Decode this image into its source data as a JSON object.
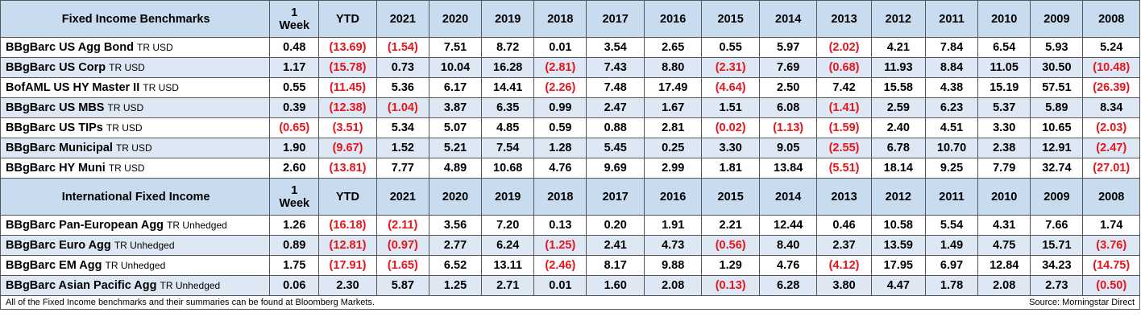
{
  "columns": [
    "1 Week",
    "YTD",
    "2021",
    "2020",
    "2019",
    "2018",
    "2017",
    "2016",
    "2015",
    "2014",
    "2013",
    "2012",
    "2011",
    "2010",
    "2009",
    "2008"
  ],
  "sections": [
    {
      "title": "Fixed Income Benchmarks",
      "rows": [
        {
          "name": "BBgBarc US Agg Bond",
          "sub": "TR USD",
          "values": [
            "0.48",
            "(13.69)",
            "(1.54)",
            "7.51",
            "8.72",
            "0.01",
            "3.54",
            "2.65",
            "0.55",
            "5.97",
            "(2.02)",
            "4.21",
            "7.84",
            "6.54",
            "5.93",
            "5.24"
          ]
        },
        {
          "name": "BBgBarc US Corp",
          "sub": "TR USD",
          "values": [
            "1.17",
            "(15.78)",
            "0.73",
            "10.04",
            "16.28",
            "(2.81)",
            "7.43",
            "8.80",
            "(2.31)",
            "7.69",
            "(0.68)",
            "11.93",
            "8.84",
            "11.05",
            "30.50",
            "(10.48)"
          ]
        },
        {
          "name": "BofAML US HY Master II",
          "sub": "TR USD",
          "values": [
            "0.55",
            "(11.45)",
            "5.36",
            "6.17",
            "14.41",
            "(2.26)",
            "7.48",
            "17.49",
            "(4.64)",
            "2.50",
            "7.42",
            "15.58",
            "4.38",
            "15.19",
            "57.51",
            "(26.39)"
          ]
        },
        {
          "name": "BBgBarc US MBS",
          "sub": "TR USD",
          "values": [
            "0.39",
            "(12.38)",
            "(1.04)",
            "3.87",
            "6.35",
            "0.99",
            "2.47",
            "1.67",
            "1.51",
            "6.08",
            "(1.41)",
            "2.59",
            "6.23",
            "5.37",
            "5.89",
            "8.34"
          ]
        },
        {
          "name": "BBgBarc US TIPs",
          "sub": "TR USD",
          "values": [
            "(0.65)",
            "(3.51)",
            "5.34",
            "5.07",
            "4.85",
            "0.59",
            "0.88",
            "2.81",
            "(0.02)",
            "(1.13)",
            "(1.59)",
            "2.40",
            "4.51",
            "3.30",
            "10.65",
            "(2.03)"
          ]
        },
        {
          "name": "BBgBarc Municipal",
          "sub": "TR USD",
          "values": [
            "1.90",
            "(9.67)",
            "1.52",
            "5.21",
            "7.54",
            "1.28",
            "5.45",
            "0.25",
            "3.30",
            "9.05",
            "(2.55)",
            "6.78",
            "10.70",
            "2.38",
            "12.91",
            "(2.47)"
          ]
        },
        {
          "name": "BBgBarc HY Muni",
          "sub": "TR USD",
          "values": [
            "2.60",
            "(13.81)",
            "7.77",
            "4.89",
            "10.68",
            "4.76",
            "9.69",
            "2.99",
            "1.81",
            "13.84",
            "(5.51)",
            "18.14",
            "9.25",
            "7.79",
            "32.74",
            "(27.01)"
          ]
        }
      ]
    },
    {
      "title": "International Fixed Income",
      "rows": [
        {
          "name": "BBgBarc Pan-European Agg",
          "sub": "TR Unhedged",
          "values": [
            "1.26",
            "(16.18)",
            "(2.11)",
            "3.56",
            "7.20",
            "0.13",
            "0.20",
            "1.91",
            "2.21",
            "12.44",
            "0.46",
            "10.58",
            "5.54",
            "4.31",
            "7.66",
            "1.74"
          ]
        },
        {
          "name": "BBgBarc Euro Agg",
          "sub": "TR Unhedged",
          "values": [
            "0.89",
            "(12.81)",
            "(0.97)",
            "2.77",
            "6.24",
            "(1.25)",
            "2.41",
            "4.73",
            "(0.56)",
            "8.40",
            "2.37",
            "13.59",
            "1.49",
            "4.75",
            "15.71",
            "(3.76)"
          ]
        },
        {
          "name": "BBgBarc EM Agg",
          "sub": "TR Unhedged",
          "values": [
            "1.75",
            "(17.91)",
            "(1.65)",
            "6.52",
            "13.11",
            "(2.46)",
            "8.17",
            "9.88",
            "1.29",
            "4.76",
            "(4.12)",
            "17.95",
            "6.97",
            "12.84",
            "34.23",
            "(14.75)"
          ]
        },
        {
          "name": "BBgBarc Asian Pacific Agg",
          "sub": "TR Unhedged",
          "values": [
            "0.06",
            "2.30",
            "5.87",
            "1.25",
            "2.71",
            "0.01",
            "1.60",
            "2.08",
            "(0.13)",
            "6.28",
            "3.80",
            "4.47",
            "1.78",
            "2.08",
            "2.73",
            "(0.50)"
          ]
        }
      ]
    }
  ],
  "footer": {
    "note": "All of the Fixed Income benchmarks and their summaries can be found at Bloomberg Markets.",
    "source": "Source: Morningstar Direct"
  },
  "colors": {
    "negative": "#e8141b",
    "header_bg": "#c9dbef",
    "alt_row_bg": "#dde8f4"
  }
}
